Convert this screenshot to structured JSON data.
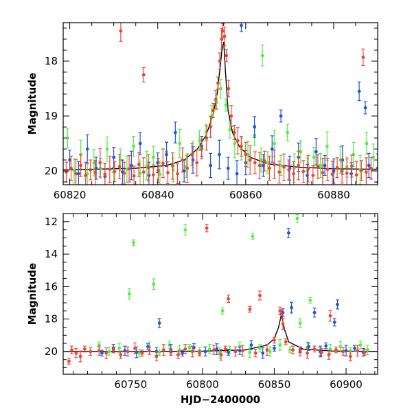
{
  "colors": {
    "series_1": "#ee4433",
    "series_2": "#55ee44",
    "series_3": "#2255dd",
    "model": "#000000"
  },
  "chart_data": [
    {
      "type": "scatter",
      "title": "",
      "xlabel": "",
      "ylabel": "Magnitude",
      "y_inverted": true,
      "xlim": [
        60818.5,
        60890
      ],
      "ylim": [
        20.25,
        17.3
      ],
      "xticks": [
        60820,
        60840,
        60860,
        60880
      ],
      "yticks": [
        18,
        19,
        20
      ],
      "model_curve": {
        "x": [
          60818.5,
          60825,
          60835,
          60842,
          60846,
          60849,
          60851,
          60852.5,
          60853.5,
          60854.2,
          60854.6,
          60855,
          60855.4,
          60856,
          60857,
          60858.5,
          60861,
          60865,
          60872,
          60880,
          60890
        ],
        "y": [
          19.98,
          19.97,
          19.95,
          19.9,
          19.8,
          19.6,
          19.35,
          19.0,
          18.6,
          18.1,
          17.8,
          17.65,
          18.2,
          18.9,
          19.3,
          19.55,
          19.75,
          19.87,
          19.93,
          19.96,
          19.97
        ]
      },
      "series": [
        {
          "color": "series_1",
          "x": [
            60819.2,
            60820.3,
            60821.4,
            60822.5,
            60823.6,
            60824.7,
            60825.8,
            60826.9,
            60828.0,
            60829.1,
            60830.2,
            60831.3,
            60831.6,
            60832.4,
            60833.5,
            60834.6,
            60835.7,
            60836.8,
            60836.8,
            60837.9,
            60839.0,
            60840.1,
            60841.2,
            60842.3,
            60843.4,
            60844.5,
            60845.6,
            60846.7,
            60847.8,
            60848.9,
            60850.0,
            60851.1,
            60852.0,
            60852.6,
            60853.2,
            60853.7,
            60854.1,
            60854.5,
            60854.8,
            60855.2,
            60855.6,
            60856.1,
            60856.7,
            60857.4,
            60858.2,
            60859.0,
            60860.0,
            60861.0,
            60862.1,
            60863.2,
            60864.3,
            60865.4,
            60866.5,
            60867.6,
            60868.7,
            60869.8,
            60870.9,
            60872.0,
            60873.1,
            60874.2,
            60875.3,
            60876.4,
            60877.5,
            60878.6,
            60879.7,
            60880.8,
            60881.9,
            60883.0,
            60884.1,
            60885.2,
            60886.3,
            60886.7,
            60887.4,
            60888.5
          ],
          "y": [
            20.02,
            19.95,
            20.05,
            19.9,
            20.08,
            19.98,
            20.03,
            19.85,
            20.06,
            19.97,
            20.01,
            19.92,
            17.45,
            20.04,
            19.96,
            20.09,
            19.88,
            20.02,
            18.25,
            19.94,
            20.07,
            19.99,
            19.86,
            20.03,
            19.91,
            20.05,
            19.8,
            19.95,
            19.7,
            19.85,
            19.6,
            19.4,
            19.2,
            18.9,
            18.7,
            18.4,
            18.0,
            17.6,
            17.45,
            17.55,
            17.9,
            18.5,
            19.0,
            19.3,
            19.45,
            19.55,
            19.7,
            19.8,
            19.85,
            19.9,
            19.82,
            19.95,
            19.88,
            20.02,
            19.93,
            19.98,
            20.05,
            19.9,
            20.01,
            19.96,
            20.08,
            19.92,
            20.03,
            19.97,
            20.06,
            19.94,
            20.0,
            20.04,
            19.91,
            20.07,
            19.99,
            17.93,
            20.02,
            19.95
          ]
        },
        {
          "color": "series_2",
          "x": [
            60819.5,
            60821.0,
            60822.5,
            60824.0,
            60825.5,
            60827.0,
            60828.5,
            60830.0,
            60831.5,
            60833.0,
            60834.5,
            60836.0,
            60837.5,
            60839.0,
            60840.5,
            60842.0,
            60843.5,
            60845.0,
            60846.5,
            60848.0,
            60849.5,
            60851.0,
            60852.2,
            60853.4,
            60854.3,
            60855.5,
            60856.4,
            60857.5,
            60859.0,
            60860.5,
            60862.0,
            60863.5,
            60863.8,
            60865.0,
            60866.5,
            60868.0,
            60869.5,
            60871.0,
            60872.5,
            60874.0,
            60875.5,
            60877.0,
            60878.5,
            60880.0,
            60881.5,
            60883.0,
            60884.5,
            60886.0,
            60887.5,
            60889.0
          ],
          "y": [
            19.4,
            20.0,
            19.7,
            20.05,
            19.85,
            19.95,
            19.6,
            20.02,
            19.8,
            19.97,
            19.55,
            20.04,
            19.9,
            19.75,
            20.06,
            19.65,
            19.98,
            19.5,
            19.92,
            19.7,
            19.45,
            19.3,
            19.0,
            18.75,
            18.5,
            18.8,
            19.25,
            19.5,
            19.6,
            19.7,
            19.35,
            19.8,
            17.9,
            19.85,
            19.5,
            19.9,
            19.3,
            19.95,
            19.65,
            20.0,
            19.75,
            19.9,
            19.55,
            20.02,
            19.8,
            19.93,
            19.7,
            19.98,
            19.5,
            19.75
          ]
        },
        {
          "color": "series_3",
          "x": [
            60820.0,
            60822.0,
            60824.0,
            60826.0,
            60828.0,
            60830.0,
            60832.0,
            60834.0,
            60836.0,
            60838.0,
            60840.0,
            60842.0,
            60844.0,
            60846.0,
            60848.0,
            60850.0,
            60852.0,
            60854.0,
            60856.0,
            60858.0,
            60859.0,
            60860.0,
            60862.0,
            60864.0,
            60866.0,
            60868.0,
            60870.0,
            60872.0,
            60874.0,
            60876.0,
            60878.0,
            60880.0,
            60882.0,
            60884.0,
            60885.8,
            60887.2,
            60888.0,
            60890.0
          ],
          "y": [
            19.8,
            20.05,
            19.6,
            19.95,
            20.1,
            19.75,
            20.02,
            19.9,
            19.5,
            20.08,
            19.85,
            19.7,
            19.3,
            20.0,
            19.8,
            19.55,
            19.9,
            19.7,
            19.95,
            20.05,
            17.35,
            19.85,
            19.2,
            19.9,
            19.6,
            19.0,
            19.95,
            19.75,
            20.08,
            19.65,
            19.9,
            20.0,
            19.8,
            20.05,
            18.55,
            18.85,
            19.9,
            19.95
          ]
        }
      ]
    },
    {
      "type": "scatter",
      "title": "",
      "xlabel": "HJD−2400000",
      "ylabel": "Magnitude",
      "y_inverted": true,
      "xlim": [
        60703,
        60922
      ],
      "ylim": [
        21.4,
        11.5
      ],
      "xticks": [
        60750,
        60800,
        60850,
        60900
      ],
      "yticks": [
        12,
        14,
        16,
        18,
        20
      ],
      "model_curve": {
        "x": [
          60703,
          60730,
          60760,
          60800,
          60830,
          60845,
          60850,
          60853,
          60855,
          60857,
          60860,
          60870,
          60890,
          60922
        ],
        "y": [
          20.0,
          20.0,
          20.0,
          19.98,
          19.9,
          19.6,
          19.2,
          18.5,
          17.7,
          18.6,
          19.4,
          19.85,
          19.97,
          20.0
        ]
      },
      "series": [
        {
          "color": "series_1",
          "x": [
            60707,
            60709,
            60712,
            60715,
            60718,
            60722,
            60728,
            60733,
            60738,
            60743,
            60748,
            60753,
            60758,
            60763,
            60768,
            60773,
            60778,
            60783,
            60788,
            60793,
            60798,
            60803,
            60808,
            60813,
            60816,
            60818,
            60823,
            60828,
            60833,
            60837,
            60840,
            60845,
            60850,
            60854,
            60855,
            60856,
            60858,
            60863,
            60868,
            60873,
            60878,
            60883,
            60888,
            60889,
            60893,
            60898,
            60903,
            60908,
            60913
          ],
          "y": [
            20.6,
            19.9,
            20.1,
            20.3,
            19.85,
            20.0,
            19.95,
            20.1,
            19.9,
            20.2,
            20.0,
            19.8,
            20.1,
            19.95,
            20.3,
            19.9,
            20.05,
            20.2,
            19.85,
            20.0,
            20.1,
            12.4,
            19.9,
            20.2,
            19.85,
            16.75,
            20.0,
            19.95,
            17.4,
            20.1,
            16.55,
            19.9,
            19.3,
            17.5,
            17.7,
            18.3,
            19.4,
            19.9,
            20.0,
            20.1,
            19.85,
            20.05,
            20.2,
            17.8,
            19.9,
            20.0,
            20.3,
            19.95,
            20.05
          ]
        },
        {
          "color": "series_2",
          "x": [
            60728,
            60735,
            60742,
            60749,
            60752,
            60756,
            60763,
            60766,
            60770,
            60777,
            60784,
            60788,
            60791,
            60798,
            60805,
            60812,
            60814,
            60819,
            60826,
            60833,
            60835,
            60840,
            60847,
            60854,
            60861,
            60866,
            60868,
            60873,
            60875,
            60882,
            60889,
            60896,
            60903,
            60910,
            60915
          ],
          "y": [
            19.6,
            20.0,
            19.8,
            16.45,
            13.3,
            20.1,
            19.7,
            15.85,
            20.05,
            19.6,
            19.9,
            12.5,
            19.75,
            20.0,
            19.85,
            20.1,
            17.5,
            19.9,
            19.7,
            20.05,
            12.9,
            19.8,
            20.0,
            19.6,
            19.9,
            11.8,
            18.25,
            19.75,
            16.85,
            20.0,
            19.85,
            19.7,
            19.95,
            19.6,
            19.9
          ]
        },
        {
          "color": "series_3",
          "x": [
            60730,
            60738,
            60746,
            60754,
            60762,
            60768,
            60770,
            60778,
            60786,
            60794,
            60802,
            60810,
            60818,
            60826,
            60834,
            60842,
            60850,
            60856,
            60860,
            60862,
            60868,
            60874,
            60878,
            60882,
            60886,
            60892,
            60894,
            60900,
            60906,
            60912
          ],
          "y": [
            20.1,
            19.8,
            19.95,
            20.05,
            19.7,
            20.0,
            18.25,
            19.9,
            20.1,
            19.75,
            20.0,
            19.85,
            20.05,
            19.95,
            19.6,
            20.1,
            19.8,
            17.6,
            12.7,
            17.3,
            19.9,
            19.7,
            17.6,
            20.0,
            19.65,
            18.2,
            17.1,
            19.95,
            19.8,
            20.05
          ]
        }
      ]
    }
  ]
}
